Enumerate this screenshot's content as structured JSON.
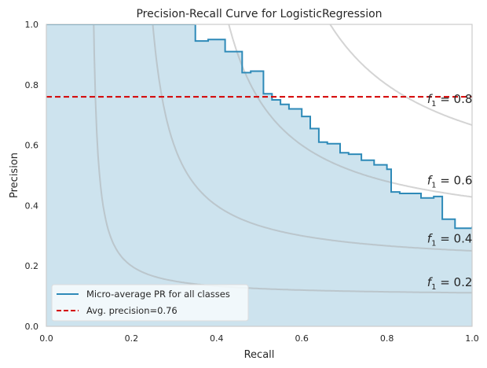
{
  "chart_data": {
    "type": "line",
    "title": "Precision-Recall Curve for LogisticRegression",
    "xlabel": "Recall",
    "ylabel": "Precision",
    "xlim": [
      0,
      1
    ],
    "ylim": [
      0,
      1
    ],
    "xticks": [
      "0.0",
      "0.2",
      "0.4",
      "0.6",
      "0.8",
      "1.0"
    ],
    "yticks": [
      "0.0",
      "0.2",
      "0.4",
      "0.6",
      "0.8",
      "1.0"
    ],
    "grid": false,
    "legend_position": "lower-left",
    "series": [
      {
        "name": "Micro-average PR for all classes",
        "color": "#2e8ab8",
        "fill": "#cde3ee",
        "step": true,
        "recall": [
          0.0,
          0.35,
          0.35,
          0.38,
          0.42,
          0.46,
          0.48,
          0.51,
          0.53,
          0.55,
          0.57,
          0.6,
          0.62,
          0.64,
          0.66,
          0.69,
          0.71,
          0.74,
          0.77,
          0.8,
          0.81,
          0.83,
          0.85,
          0.88,
          0.91,
          0.93,
          0.96,
          1.0
        ],
        "precision": [
          1.0,
          1.0,
          0.945,
          0.95,
          0.91,
          0.84,
          0.845,
          0.77,
          0.75,
          0.735,
          0.72,
          0.695,
          0.655,
          0.61,
          0.605,
          0.575,
          0.57,
          0.55,
          0.535,
          0.52,
          0.445,
          0.44,
          0.44,
          0.425,
          0.43,
          0.355,
          0.325,
          0.33
        ]
      },
      {
        "name": "Avg. precision=0.76",
        "color": "#d40000",
        "style": "dashed",
        "value": 0.76
      }
    ],
    "iso_f1": [
      {
        "f": 0.2,
        "label_prefix": "f",
        "label_sub": "1",
        "label_suffix": " = 0.2"
      },
      {
        "f": 0.4,
        "label_prefix": "f",
        "label_sub": "1",
        "label_suffix": " = 0.4"
      },
      {
        "f": 0.6,
        "label_prefix": "f",
        "label_sub": "1",
        "label_suffix": " = 0.6"
      },
      {
        "f": 0.8,
        "label_prefix": "f",
        "label_sub": "1",
        "label_suffix": " = 0.8"
      }
    ]
  }
}
